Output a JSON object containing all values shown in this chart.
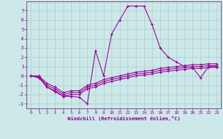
{
  "xlabel": "Windchill (Refroidissement éolien,°C)",
  "background_color": "#cce8e8",
  "grid_color": "#aacccc",
  "line_color": "#990099",
  "xlim": [
    -0.5,
    23.5
  ],
  "ylim": [
    -3.5,
    8.0
  ],
  "yticks": [
    -3,
    -2,
    -1,
    0,
    1,
    2,
    3,
    4,
    5,
    6,
    7
  ],
  "xticks": [
    0,
    1,
    2,
    3,
    4,
    5,
    6,
    7,
    8,
    9,
    10,
    11,
    12,
    13,
    14,
    15,
    16,
    17,
    18,
    19,
    20,
    21,
    22,
    23
  ],
  "series": [
    {
      "x": [
        0,
        1,
        2,
        3,
        4,
        5,
        6,
        7,
        8,
        9,
        10,
        11,
        12,
        13,
        14,
        15,
        16,
        17,
        18,
        19,
        20,
        21,
        22,
        23
      ],
      "y": [
        0.0,
        -0.2,
        -1.2,
        -1.6,
        -2.2,
        -2.0,
        -2.0,
        -1.4,
        -1.2,
        -0.8,
        -0.6,
        -0.4,
        -0.2,
        0.0,
        0.1,
        0.2,
        0.4,
        0.5,
        0.6,
        0.7,
        0.8,
        0.8,
        0.9,
        0.9
      ]
    },
    {
      "x": [
        0,
        1,
        2,
        3,
        4,
        5,
        6,
        7,
        8,
        9,
        10,
        11,
        12,
        13,
        14,
        15,
        16,
        17,
        18,
        19,
        20,
        21,
        22,
        23
      ],
      "y": [
        0.0,
        -0.1,
        -1.0,
        -1.4,
        -2.0,
        -1.8,
        -1.8,
        -1.2,
        -1.0,
        -0.6,
        -0.4,
        -0.2,
        0.0,
        0.2,
        0.3,
        0.4,
        0.6,
        0.7,
        0.8,
        0.9,
        1.0,
        1.0,
        1.1,
        1.1
      ]
    },
    {
      "x": [
        0,
        1,
        2,
        3,
        4,
        5,
        6,
        7,
        8,
        9,
        10,
        11,
        12,
        13,
        14,
        15,
        16,
        17,
        18,
        19,
        20,
        21,
        22,
        23
      ],
      "y": [
        0.0,
        0.0,
        -0.8,
        -1.2,
        -1.8,
        -1.6,
        -1.6,
        -1.0,
        -0.8,
        -0.4,
        -0.2,
        0.0,
        0.2,
        0.4,
        0.5,
        0.6,
        0.8,
        0.9,
        1.0,
        1.1,
        1.2,
        1.2,
        1.3,
        1.3
      ]
    },
    {
      "x": [
        0,
        1,
        2,
        3,
        4,
        5,
        6,
        7,
        8,
        9,
        10,
        11,
        12,
        13,
        14,
        15,
        16,
        17,
        18,
        19,
        20,
        21,
        22,
        23
      ],
      "y": [
        0.0,
        -0.2,
        -1.2,
        -1.7,
        -2.2,
        -2.2,
        -2.3,
        -3.0,
        2.7,
        0.0,
        4.5,
        6.0,
        7.5,
        7.5,
        7.5,
        5.5,
        3.0,
        2.0,
        1.5,
        1.0,
        0.9,
        -0.2,
        1.0,
        1.0
      ]
    }
  ]
}
